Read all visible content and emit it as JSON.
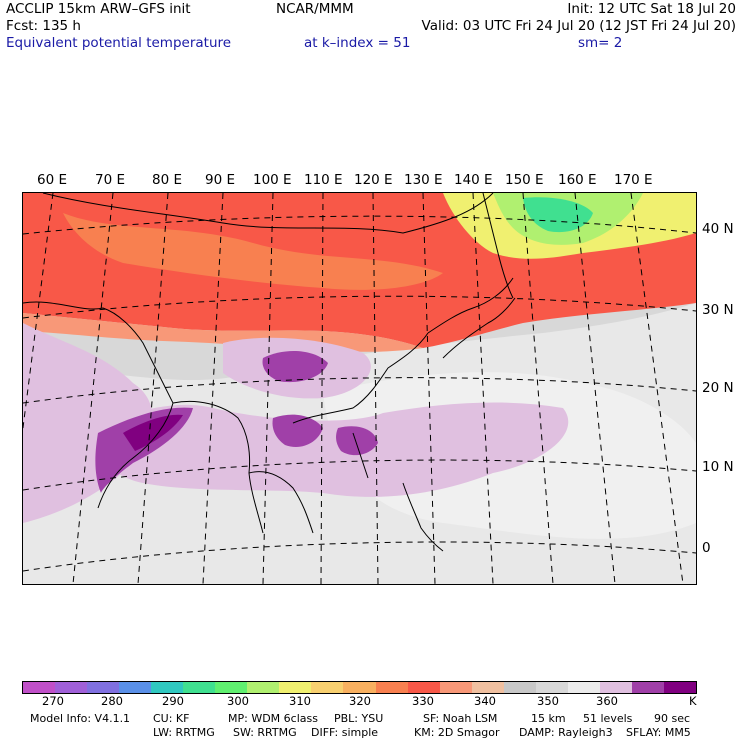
{
  "header": {
    "model": "ACCLIP 15km ARW–GFS init",
    "org": "NCAR/MMM",
    "init": "Init: 12 UTC Sat 18 Jul 20",
    "fcst": "Fcst:  135 h",
    "valid": "Valid: 03 UTC Fri 24 Jul 20 (12 JST Fri 24 Jul 20)",
    "field": "Equivalent potential temperature",
    "level": "at k–index =  51",
    "smooth": "sm= 2"
  },
  "map": {
    "lon_labels": [
      "60 E",
      "70 E",
      "80 E",
      "90 E",
      "100 E",
      "110 E",
      "120 E",
      "130 E",
      "140 E",
      "150 E",
      "160 E",
      "170 E"
    ],
    "lat_labels": [
      "40 N",
      "30 N",
      "20 N",
      "10 N",
      "0"
    ]
  },
  "colorbar": {
    "colors": [
      "#c050c8",
      "#a060d8",
      "#8070e0",
      "#5a90e8",
      "#30c8c0",
      "#40e090",
      "#60f070",
      "#b0f070",
      "#f0f070",
      "#f8d070",
      "#f8b060",
      "#f88050",
      "#f85848",
      "#f89878",
      "#f0c0a0",
      "#c8c8c8",
      "#d8d8d8",
      "#ececec",
      "#e0c0e0",
      "#a040a8",
      "#800080"
    ],
    "tick_labels": [
      "270",
      "280",
      "290",
      "300",
      "310",
      "320",
      "330",
      "340",
      "350",
      "360"
    ],
    "unit": "K"
  },
  "footer": {
    "line1": [
      "Model Info: V4.1.1",
      "CU: KF",
      "MP: WDM 6class",
      "PBL: YSU",
      "SF: Noah LSM",
      "15 km",
      "51 levels",
      "90 sec"
    ],
    "line2": [
      "LW: RRTMG",
      "SW: RRTMG",
      "DIFF: simple",
      "KM: 2D Smagor",
      "DAMP: Rayleigh3",
      "SFLAY: MM5"
    ]
  }
}
